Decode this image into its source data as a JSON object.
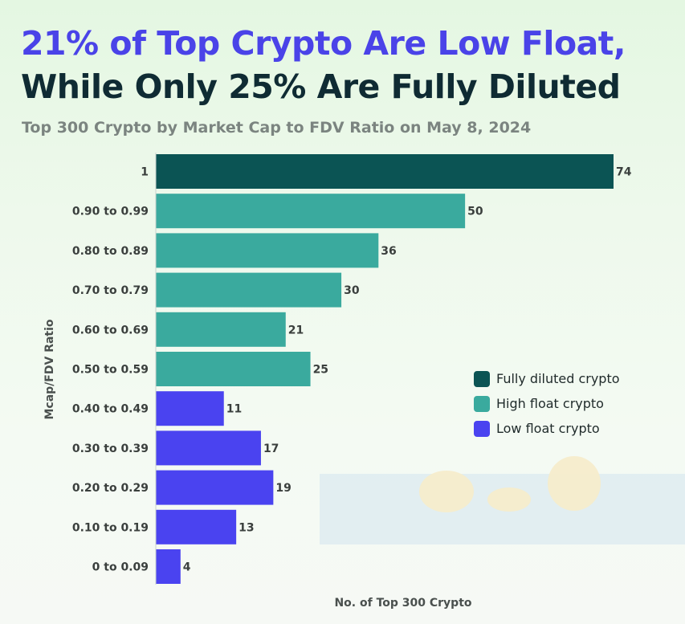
{
  "title_line1": "21% of Top Crypto Are Low Float,",
  "title_line2": "While Only 25% Are Fully Diluted",
  "subtitle": "Top 300 Crypto by Market Cap to FDV Ratio on May 8, 2024",
  "chart_data": {
    "type": "bar",
    "orientation": "horizontal",
    "categories": [
      "1",
      "0.90 to 0.99",
      "0.80 to 0.89",
      "0.70 to 0.79",
      "0.60 to 0.69",
      "0.50 to 0.59",
      "0.40 to 0.49",
      "0.30 to 0.39",
      "0.20 to 0.29",
      "0.10 to 0.19",
      "0 to 0.09"
    ],
    "values": [
      74,
      50,
      36,
      30,
      21,
      25,
      11,
      17,
      19,
      13,
      4
    ],
    "groups": [
      "Fully diluted crypto",
      "High float crypto",
      "High float crypto",
      "High float crypto",
      "High float crypto",
      "High float crypto",
      "Low float crypto",
      "Low float crypto",
      "Low float crypto",
      "Low float crypto",
      "Low float crypto"
    ],
    "xlabel": "No. of Top 300 Crypto",
    "ylabel": "Mcap/FDV Ratio",
    "xlim": [
      0,
      80
    ],
    "grid": false,
    "legend_position": "right",
    "legend": [
      {
        "name": "Fully diluted crypto",
        "color": "#0b5454"
      },
      {
        "name": "High float crypto",
        "color": "#3aaa9e"
      },
      {
        "name": "Low float crypto",
        "color": "#4a43f0"
      }
    ]
  }
}
